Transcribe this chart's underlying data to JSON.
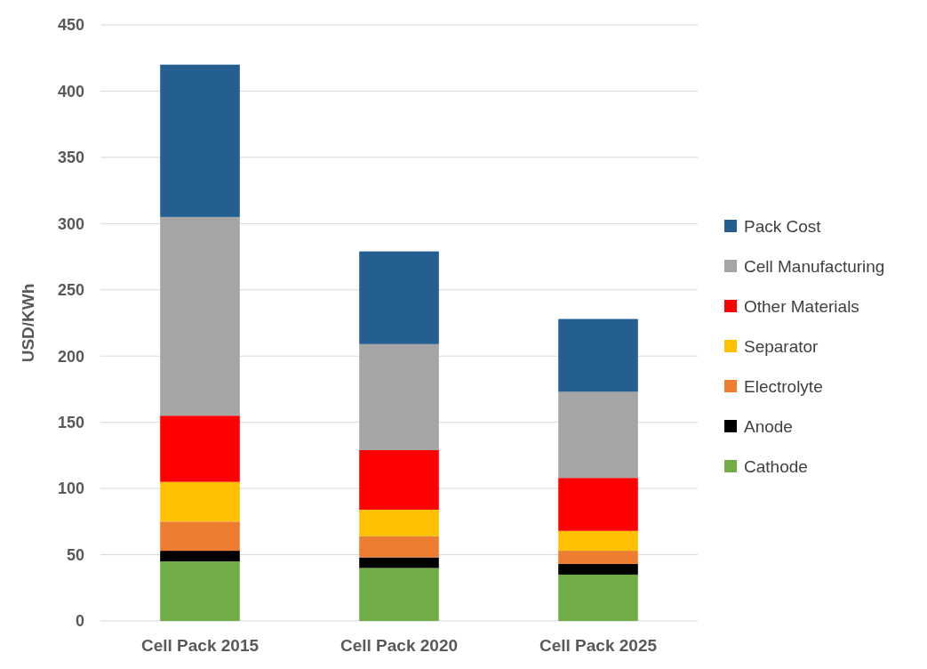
{
  "chart_data": {
    "type": "bar",
    "stacked": true,
    "ylabel": "USD/KWh",
    "categories": [
      "Cell Pack 2015",
      "Cell Pack 2020",
      "Cell Pack 2025"
    ],
    "series": [
      {
        "name": "Cathode",
        "color": "#70ad47",
        "values": [
          45,
          40,
          35
        ]
      },
      {
        "name": "Anode",
        "color": "#000000",
        "values": [
          8,
          8,
          8
        ]
      },
      {
        "name": "Electrolyte",
        "color": "#ed7d31",
        "values": [
          22,
          16,
          10
        ]
      },
      {
        "name": "Separator",
        "color": "#ffc000",
        "values": [
          30,
          20,
          15
        ]
      },
      {
        "name": "Other Materials",
        "color": "#ff0000",
        "values": [
          50,
          45,
          40
        ]
      },
      {
        "name": "Cell Manufacturing",
        "color": "#a5a5a5",
        "values": [
          150,
          80,
          65
        ]
      },
      {
        "name": "Pack Cost",
        "color": "#255e91",
        "values": [
          115,
          70,
          55
        ]
      }
    ],
    "ylim": [
      0,
      450
    ],
    "yticks": [
      0,
      50,
      100,
      150,
      200,
      250,
      300,
      350,
      400,
      450
    ],
    "grid": "y",
    "legend": "right"
  }
}
